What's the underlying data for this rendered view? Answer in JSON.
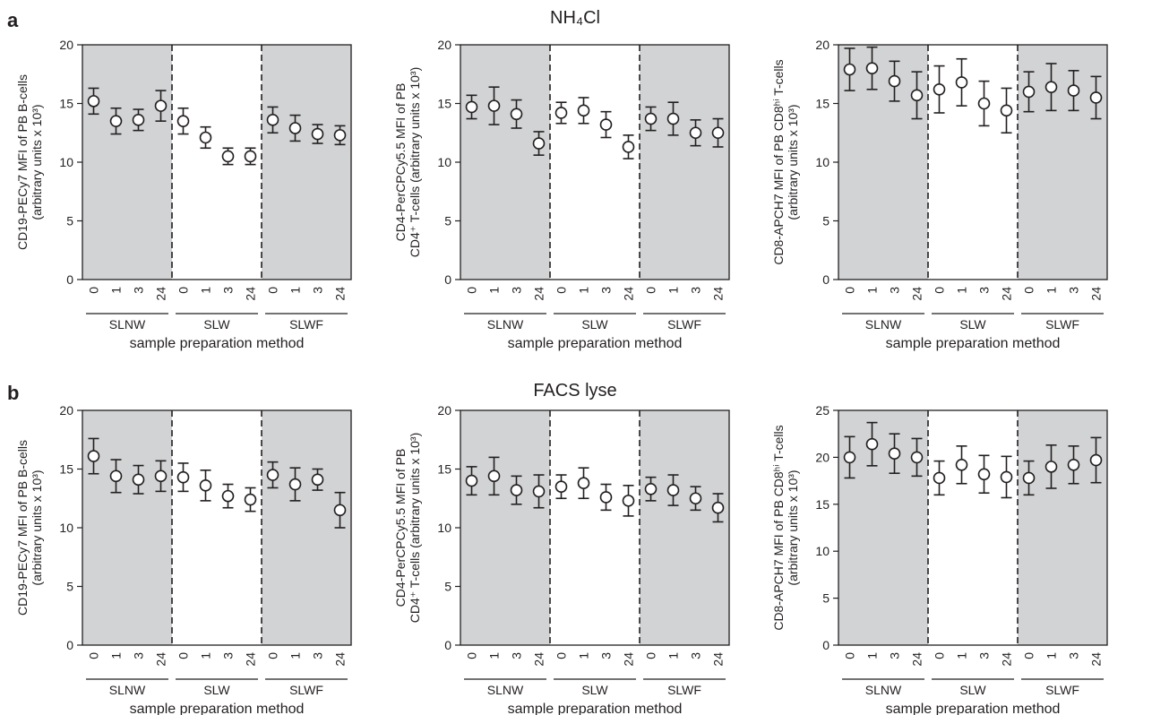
{
  "figure": {
    "panel_a_label": "a",
    "panel_b_label": "b",
    "row_a_title": "NH₄Cl",
    "row_b_title": "FACS lyse"
  },
  "chart_data": [
    {
      "type": "scatter",
      "panel": "a",
      "row_title": "NH₄Cl",
      "ylabel": "CD19-PECy7 MFI of PB B-cells",
      "ylabel_units": "(arbitrary units x 10³)",
      "xlabel": "sample preparation method",
      "ylim": [
        0,
        20
      ],
      "yticks": [
        0,
        5,
        10,
        15,
        20
      ],
      "groups": [
        "SLNW",
        "SLW",
        "SLWF"
      ],
      "timepoints": [
        "0",
        "1",
        "3",
        "24"
      ],
      "shaded_groups": [
        "SLNW",
        "SLWF"
      ],
      "values": [
        15.2,
        13.5,
        13.6,
        14.8,
        13.5,
        12.1,
        10.5,
        10.5,
        13.6,
        12.9,
        12.4,
        12.3
      ],
      "err": [
        1.1,
        1.1,
        0.9,
        1.3,
        1.1,
        0.9,
        0.7,
        0.7,
        1.1,
        1.1,
        0.8,
        0.8
      ]
    },
    {
      "type": "scatter",
      "panel": "a",
      "row_title": "NH₄Cl",
      "ylabel": "CD4-PerCPCy5.5 MFI of PB",
      "ylabel_units": "CD4⁺ T-cells (arbitrary units x 10³)",
      "xlabel": "sample preparation method",
      "ylim": [
        0,
        20
      ],
      "yticks": [
        0,
        5,
        10,
        15,
        20
      ],
      "groups": [
        "SLNW",
        "SLW",
        "SLWF"
      ],
      "timepoints": [
        "0",
        "1",
        "3",
        "24"
      ],
      "shaded_groups": [
        "SLNW",
        "SLWF"
      ],
      "values": [
        14.7,
        14.8,
        14.1,
        11.6,
        14.2,
        14.4,
        13.2,
        11.3,
        13.7,
        13.7,
        12.5,
        12.5
      ],
      "err": [
        1.0,
        1.6,
        1.2,
        1.0,
        0.9,
        1.1,
        1.1,
        1.0,
        1.0,
        1.4,
        1.1,
        1.2
      ]
    },
    {
      "type": "scatter",
      "panel": "a",
      "row_title": "NH₄Cl",
      "ylabel": "CD8-APCH7 MFI of PB CD8ʰⁱ T-cells",
      "ylabel_units": "(arbitrary units x 10³)",
      "xlabel": "sample preparation method",
      "ylim": [
        0,
        20
      ],
      "yticks": [
        0,
        5,
        10,
        15,
        20
      ],
      "groups": [
        "SLNW",
        "SLW",
        "SLWF"
      ],
      "timepoints": [
        "0",
        "1",
        "3",
        "24"
      ],
      "shaded_groups": [
        "SLNW",
        "SLWF"
      ],
      "values": [
        17.9,
        18.0,
        16.9,
        15.7,
        16.2,
        16.8,
        15.0,
        14.4,
        16.0,
        16.4,
        16.1,
        15.5
      ],
      "err": [
        1.8,
        1.8,
        1.7,
        2.0,
        2.0,
        2.0,
        1.9,
        1.9,
        1.7,
        2.0,
        1.7,
        1.8
      ]
    },
    {
      "type": "scatter",
      "panel": "b",
      "row_title": "FACS lyse",
      "ylabel": "CD19-PECy7 MFI of PB B-cells",
      "ylabel_units": "(arbitrary units x 10³)",
      "xlabel": "sample preparation method",
      "ylim": [
        0,
        20
      ],
      "yticks": [
        0,
        5,
        10,
        15,
        20
      ],
      "groups": [
        "SLNW",
        "SLW",
        "SLWF"
      ],
      "timepoints": [
        "0",
        "1",
        "3",
        "24"
      ],
      "shaded_groups": [
        "SLNW",
        "SLWF"
      ],
      "values": [
        16.1,
        14.4,
        14.1,
        14.4,
        14.3,
        13.6,
        12.7,
        12.4,
        14.5,
        13.7,
        14.1,
        11.5
      ],
      "err": [
        1.5,
        1.4,
        1.2,
        1.3,
        1.2,
        1.3,
        1.0,
        1.0,
        1.1,
        1.4,
        0.9,
        1.5
      ]
    },
    {
      "type": "scatter",
      "panel": "b",
      "row_title": "FACS lyse",
      "ylabel": "CD4-PerCPCy5.5 MFI of PB",
      "ylabel_units": "CD4⁺ T-cells (arbitrary units x 10³)",
      "xlabel": "sample preparation method",
      "ylim": [
        0,
        20
      ],
      "yticks": [
        0,
        5,
        10,
        15,
        20
      ],
      "groups": [
        "SLNW",
        "SLW",
        "SLWF"
      ],
      "timepoints": [
        "0",
        "1",
        "3",
        "24"
      ],
      "shaded_groups": [
        "SLNW",
        "SLWF"
      ],
      "values": [
        14.0,
        14.4,
        13.2,
        13.1,
        13.5,
        13.8,
        12.6,
        12.3,
        13.3,
        13.2,
        12.5,
        11.7
      ],
      "err": [
        1.2,
        1.6,
        1.2,
        1.4,
        1.0,
        1.3,
        1.1,
        1.3,
        1.0,
        1.3,
        1.0,
        1.2
      ]
    },
    {
      "type": "scatter",
      "panel": "b",
      "row_title": "FACS lyse",
      "ylabel": "CD8-APCH7 MFI of PB CD8ʰⁱ T-cells",
      "ylabel_units": "(arbitrary units x 10³)",
      "xlabel": "sample preparation method",
      "ylim": [
        0,
        25
      ],
      "yticks": [
        0,
        5,
        10,
        15,
        20,
        25
      ],
      "groups": [
        "SLNW",
        "SLW",
        "SLWF"
      ],
      "timepoints": [
        "0",
        "1",
        "3",
        "24"
      ],
      "shaded_groups": [
        "SLNW",
        "SLWF"
      ],
      "values": [
        20.0,
        21.4,
        20.4,
        20.0,
        17.8,
        19.2,
        18.2,
        17.9,
        17.8,
        19.0,
        19.2,
        19.7
      ],
      "err": [
        2.2,
        2.3,
        2.1,
        2.0,
        1.8,
        2.0,
        2.0,
        2.2,
        1.8,
        2.3,
        2.0,
        2.4
      ]
    }
  ],
  "style": {
    "shade_color": "#d1d3d4",
    "ink_color": "#231f20",
    "marker_fill": "#ffffff"
  }
}
